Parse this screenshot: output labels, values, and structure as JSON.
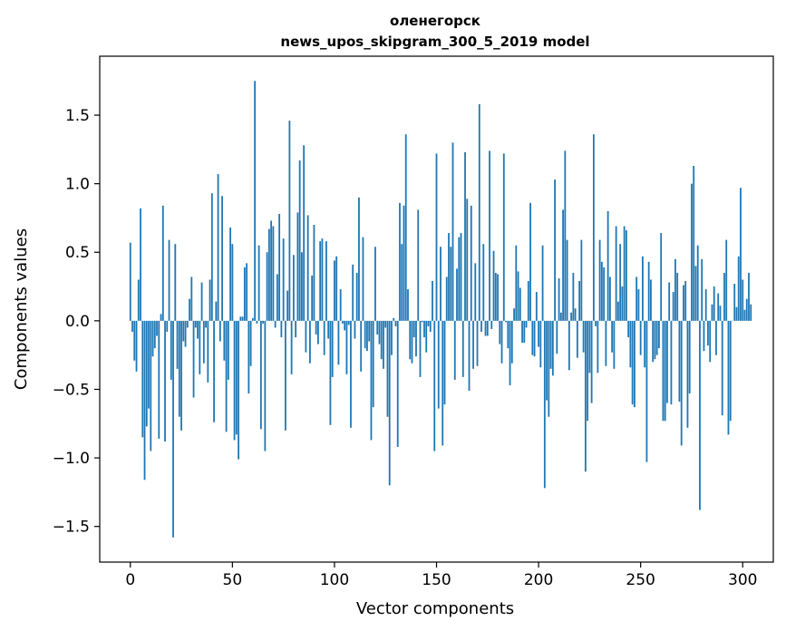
{
  "chart_data": {
    "type": "bar",
    "title_line1": "оленегорск",
    "title_line2": "news_upos_skipgram_300_5_2019 model",
    "xlabel": "Vector components",
    "ylabel": "Components values",
    "xlim": [
      -15,
      315
    ],
    "ylim": [
      -1.76,
      1.93
    ],
    "xticks": [
      0,
      50,
      100,
      150,
      200,
      250,
      300
    ],
    "xtick_labels": [
      "0",
      "50",
      "100",
      "150",
      "200",
      "250",
      "300"
    ],
    "yticks": [
      -1.5,
      -1.0,
      -0.5,
      0.0,
      0.5,
      1.0,
      1.5
    ],
    "ytick_labels": [
      "−1.5",
      "−1.0",
      "−0.5",
      "0.0",
      "0.5",
      "1.0",
      "1.5"
    ],
    "grid": false,
    "bar_color": "#1f77b4",
    "bar_width": 0.8,
    "values": [
      0.57,
      -0.08,
      -0.29,
      -0.37,
      0.3,
      0.82,
      -0.85,
      -1.16,
      -0.77,
      -0.64,
      -0.95,
      -0.26,
      -0.2,
      -0.11,
      -0.86,
      0.05,
      0.84,
      -0.88,
      -0.08,
      0.59,
      -0.43,
      -1.58,
      0.56,
      -0.35,
      -0.7,
      -0.8,
      -0.15,
      -0.19,
      -0.05,
      0.16,
      0.32,
      -0.56,
      -0.05,
      -0.13,
      -0.39,
      0.28,
      -0.31,
      -0.05,
      -0.45,
      0.3,
      0.93,
      -0.74,
      0.14,
      1.07,
      -0.15,
      0.91,
      -0.29,
      -0.81,
      -0.43,
      0.68,
      0.56,
      -0.87,
      -0.83,
      -1.01,
      0.03,
      0.03,
      0.39,
      0.42,
      -0.53,
      -0.33,
      0.02,
      1.75,
      -0.02,
      0.55,
      -0.79,
      -0.02,
      -0.95,
      0.5,
      0.67,
      0.73,
      0.69,
      -0.05,
      0.34,
      0.78,
      -0.12,
      0.6,
      -0.8,
      0.22,
      1.46,
      -0.39,
      0.48,
      -0.12,
      0.79,
      1.17,
      0.5,
      1.28,
      -0.23,
      0.77,
      -0.31,
      0.33,
      0.7,
      -0.1,
      -0.17,
      0.58,
      0.6,
      -0.25,
      0.58,
      -0.13,
      -0.76,
      -0.41,
      0.44,
      0.47,
      -0.32,
      0.23,
      -0.02,
      -0.07,
      -0.39,
      -0.03,
      -0.78,
      0.41,
      -0.13,
      0.35,
      0.9,
      -0.37,
      0.61,
      -0.2,
      -0.22,
      -0.15,
      -0.87,
      -0.63,
      0.54,
      -0.1,
      -0.17,
      -0.28,
      -0.35,
      -0.05,
      -0.7,
      -1.2,
      -0.25,
      0.02,
      -0.04,
      -0.92,
      0.86,
      0.56,
      0.84,
      1.36,
      0.23,
      -0.28,
      -0.31,
      -0.12,
      -0.26,
      0.81,
      -0.41,
      -0.01,
      -0.12,
      -0.23,
      -0.04,
      -0.08,
      0.29,
      -0.95,
      1.22,
      -0.64,
      0.54,
      -0.91,
      -0.61,
      0.32,
      0.64,
      0.54,
      1.3,
      -0.43,
      0.38,
      0.61,
      0.64,
      -0.41,
      1.23,
      0.89,
      -0.51,
      0.84,
      -0.35,
      0.42,
      -0.33,
      1.58,
      -0.08,
      0.56,
      -0.11,
      -0.11,
      1.24,
      -0.06,
      0.51,
      0.35,
      0.34,
      -0.17,
      -0.31,
      1.22,
      -0.01,
      -0.2,
      -0.47,
      -0.31,
      0.09,
      0.55,
      0.36,
      0.24,
      -0.16,
      -0.16,
      -0.05,
      0.29,
      0.86,
      -0.25,
      -0.26,
      0.21,
      -0.19,
      -0.34,
      0.55,
      -1.22,
      -0.58,
      -0.7,
      -0.35,
      -0.4,
      1.03,
      -0.24,
      0.31,
      0.06,
      0.81,
      1.24,
      0.59,
      -0.36,
      0.06,
      0.35,
      0.09,
      -0.27,
      0.29,
      0.59,
      -0.23,
      -1.1,
      -0.73,
      -0.38,
      -0.6,
      1.36,
      -0.04,
      -0.38,
      0.59,
      0.43,
      0.39,
      -0.33,
      0.8,
      0.32,
      -0.23,
      -0.35,
      0.69,
      0.14,
      0.56,
      0.25,
      0.69,
      0.66,
      -0.12,
      -0.34,
      -0.61,
      -0.63,
      0.32,
      0.23,
      -0.25,
      0.47,
      -0.34,
      -1.03,
      0.43,
      0.3,
      -0.3,
      -0.28,
      -0.25,
      -0.2,
      0.64,
      -0.73,
      -0.73,
      -0.6,
      0.28,
      -0.61,
      0.21,
      0.45,
      0.35,
      -0.59,
      -0.91,
      0.26,
      0.29,
      -0.78,
      -0.53,
      1.0,
      1.13,
      0.4,
      0.55,
      -1.38,
      0.45,
      -0.22,
      0.23,
      -0.18,
      -0.3,
      0.12,
      0.25,
      -0.25,
      0.2,
      0.11,
      -0.69,
      0.35,
      0.59,
      -0.83,
      -0.73,
      0.0,
      0.27,
      0.1,
      0.47,
      0.97,
      0.3,
      0.08,
      0.16,
      0.35,
      0.12
    ]
  }
}
